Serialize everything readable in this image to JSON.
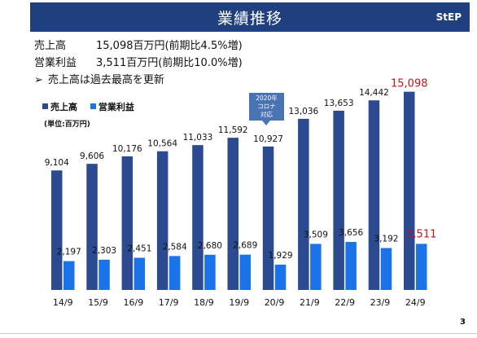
{
  "header": {
    "title": "業績推移",
    "logo": "StEP"
  },
  "summary": {
    "sales_label": "売上高",
    "sales_value": "15,098百万円(前期比4.5%増)",
    "op_label": "営業利益",
    "op_value": "3,511百万円(前期比10.0%増)",
    "bullet": "➢",
    "note": "売上高は過去最高を更新"
  },
  "callout": {
    "line1": "2020年",
    "line2": "コロナ",
    "line3": "対応"
  },
  "page_number": "3",
  "colors": {
    "header": "#1f3f7f",
    "sales": "#2c4a8f",
    "op": "#1a73e8",
    "highlight": "#c0141a"
  },
  "chart_data": {
    "type": "bar",
    "categories": [
      "14/9",
      "15/9",
      "16/9",
      "17/9",
      "18/9",
      "19/9",
      "20/9",
      "21/9",
      "22/9",
      "23/9",
      "24/9"
    ],
    "series": [
      {
        "name": "売上高",
        "values": [
          9104,
          9606,
          10176,
          10564,
          11033,
          11592,
          10927,
          13036,
          13653,
          14442,
          15098
        ],
        "labels": [
          "9,104",
          "9,606",
          "10,176",
          "10,564",
          "11,033",
          "11,592",
          "10,927",
          "13,036",
          "13,653",
          "14,442",
          "15,098"
        ]
      },
      {
        "name": "営業利益",
        "values": [
          2197,
          2303,
          2451,
          2584,
          2680,
          2689,
          1929,
          3509,
          3656,
          3192,
          3511
        ],
        "labels": [
          "2,197",
          "2,303",
          "2,451",
          "2,584",
          "2,680",
          "2,689",
          "1,929",
          "3,509",
          "3,656",
          "3,192",
          "3,511"
        ]
      }
    ],
    "unit_label": "(単位:百万円)",
    "highlight_last": true,
    "ylim": [
      0,
      16000
    ]
  }
}
